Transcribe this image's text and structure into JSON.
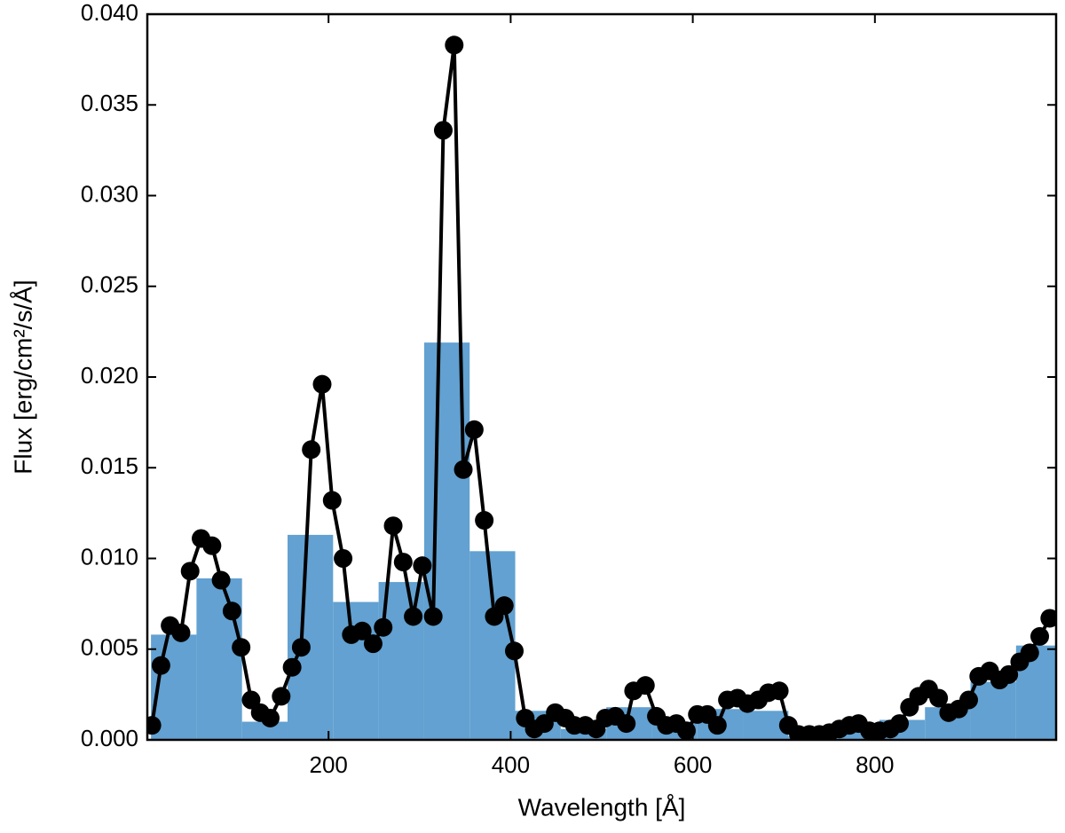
{
  "chart_data": [
    {
      "type": "histogram",
      "xlabel": "Wavelength [Å]",
      "ylabel": "Flux [erg/cm²/s/Å]",
      "bins": [
        5,
        55,
        105,
        155,
        205,
        255,
        305,
        355,
        405,
        455,
        505,
        555,
        605,
        655,
        705,
        755,
        805,
        855,
        905,
        955,
        1005
      ],
      "values": [
        0.0058,
        0.0089,
        0.001,
        0.0113,
        0.0076,
        0.0087,
        0.0219,
        0.0104,
        0.0016,
        0.0006,
        0.0018,
        0.001,
        0.0017,
        0.0016,
        0.0002,
        0.0005,
        0.0011,
        0.0018,
        0.0032,
        0.0052
      ],
      "color": "#62a1d1",
      "xlim": [
        1,
        999
      ],
      "ylim": [
        0,
        0.04
      ],
      "xticks": [
        200,
        400,
        600,
        800
      ],
      "yticks": [
        {
          "value": 0,
          "label": "0.000"
        },
        {
          "value": 0.005,
          "label": "0.005"
        },
        {
          "value": 0.01,
          "label": "0.010"
        },
        {
          "value": 0.015,
          "label": "0.015"
        },
        {
          "value": 0.02,
          "label": "0.020"
        },
        {
          "value": 0.025,
          "label": "0.025"
        },
        {
          "value": 0.03,
          "label": "0.030"
        },
        {
          "value": 0.035,
          "label": "0.035"
        },
        {
          "value": 0.04,
          "label": "0.040"
        }
      ]
    },
    {
      "type": "line",
      "color": "#000000",
      "markers": true,
      "x": [
        6,
        16,
        26,
        38,
        48,
        60,
        72,
        82,
        94,
        104,
        115,
        125,
        136,
        148,
        160,
        170,
        181,
        193,
        204,
        216,
        225,
        237,
        249,
        260,
        271,
        282,
        293,
        303,
        315,
        326,
        338,
        348,
        360,
        371,
        382,
        393,
        404,
        416,
        426,
        437,
        449,
        460,
        470,
        482,
        494,
        504,
        515,
        527,
        535,
        548,
        560,
        571,
        582,
        593,
        605,
        616,
        627,
        638,
        649,
        660,
        672,
        683,
        695,
        705,
        716,
        728,
        739,
        750,
        761,
        772,
        782,
        794,
        805,
        817,
        827,
        838,
        848,
        859,
        870,
        881,
        892,
        903,
        914,
        926,
        937,
        947,
        959,
        970,
        981,
        992
      ],
      "values": [
        0.0008,
        0.0041,
        0.0063,
        0.0059,
        0.0093,
        0.0111,
        0.0107,
        0.0088,
        0.0071,
        0.0051,
        0.0022,
        0.0015,
        0.0012,
        0.0024,
        0.004,
        0.0051,
        0.016,
        0.0196,
        0.0132,
        0.01,
        0.0058,
        0.006,
        0.0053,
        0.0062,
        0.0118,
        0.0098,
        0.0068,
        0.0096,
        0.0068,
        0.0336,
        0.0383,
        0.0149,
        0.0171,
        0.0121,
        0.0068,
        0.0074,
        0.0049,
        0.0012,
        0.0006,
        0.0009,
        0.0015,
        0.0012,
        0.0008,
        0.0008,
        0.0006,
        0.0012,
        0.0013,
        0.0009,
        0.0027,
        0.003,
        0.0013,
        0.0008,
        0.0009,
        0.0005,
        0.0014,
        0.0014,
        0.0008,
        0.0022,
        0.0023,
        0.002,
        0.0022,
        0.0026,
        0.0027,
        0.0008,
        0.0003,
        0.0003,
        0.0003,
        0.0004,
        0.0006,
        0.0008,
        0.0009,
        0.0005,
        0.0005,
        0.0006,
        0.0009,
        0.0018,
        0.0024,
        0.0028,
        0.0023,
        0.0015,
        0.0017,
        0.0022,
        0.0035,
        0.0038,
        0.0033,
        0.0036,
        0.0043,
        0.0048,
        0.0057,
        0.0067
      ]
    }
  ]
}
